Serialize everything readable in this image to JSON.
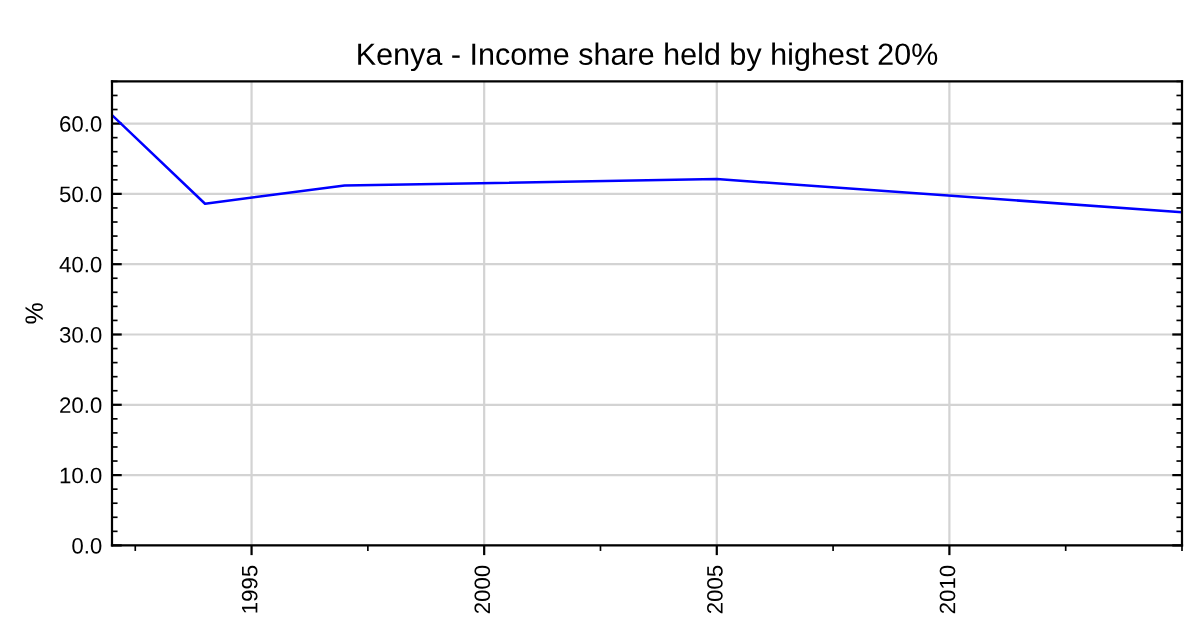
{
  "chart_data": {
    "type": "line",
    "title": "Kenya - Income share held by highest 20%",
    "ylabel": "%",
    "x": [
      1992,
      1994,
      1997,
      2005,
      2015
    ],
    "series": [
      {
        "color": "#0000ff",
        "values": [
          61.2,
          48.6,
          51.2,
          52.1,
          47.4
        ]
      }
    ],
    "xlim": [
      1992,
      2015
    ],
    "xticks": [
      1995,
      2000,
      2005,
      2010
    ],
    "ylim": [
      0,
      66
    ],
    "yticks": [
      {
        "value": 0,
        "label": "0.0"
      },
      {
        "value": 10,
        "label": "10.0"
      },
      {
        "value": 20,
        "label": "20.0"
      },
      {
        "value": 30,
        "label": "30.0"
      },
      {
        "value": 40,
        "label": "40.0"
      },
      {
        "value": 50,
        "label": "50.0"
      },
      {
        "value": 60,
        "label": "60.0"
      }
    ],
    "grid": true,
    "marker": "none",
    "line_style": "solid"
  }
}
